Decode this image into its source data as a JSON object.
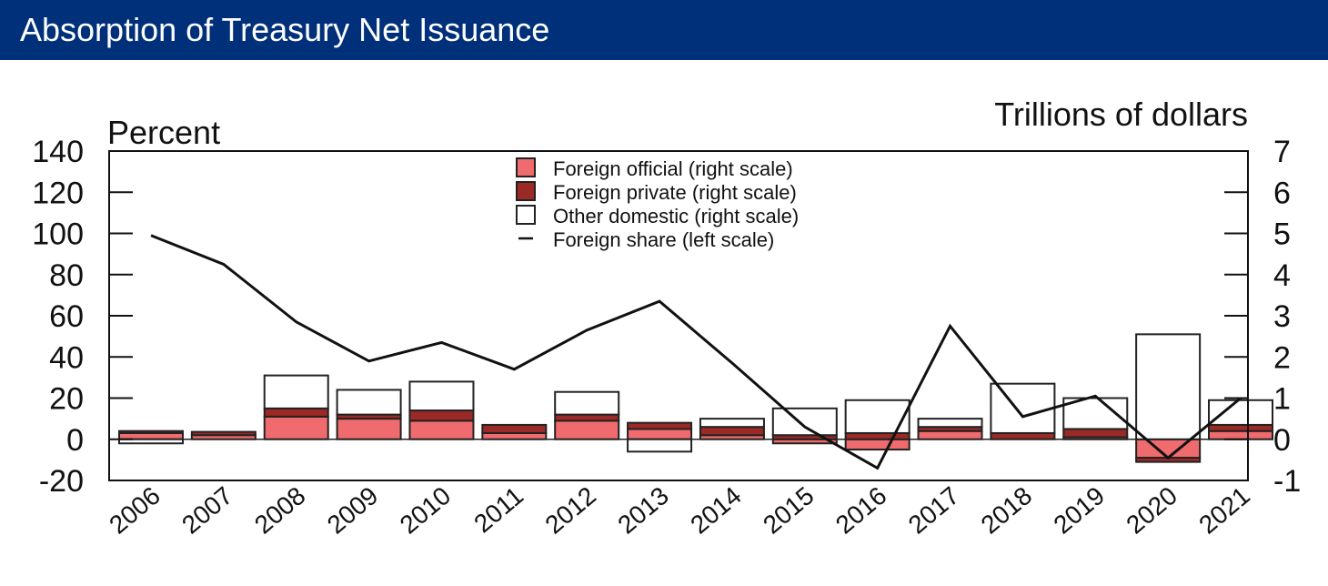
{
  "header": {
    "title": "Absorption of Treasury Net Issuance"
  },
  "colors": {
    "header_bg": "#00307a",
    "foreign_official": "#ef6b6d",
    "foreign_private": "#9b2a26",
    "other_domestic": "#ffffff",
    "line": "#111111"
  },
  "chart_data": {
    "type": "bar",
    "stacked": true,
    "left_axis": {
      "unit_label": "Percent",
      "range": [
        -20,
        140
      ],
      "ticks": [
        -20,
        0,
        20,
        40,
        60,
        80,
        100,
        120,
        140
      ]
    },
    "right_axis": {
      "unit_label": "Trillions of dollars",
      "range": [
        -1,
        7
      ],
      "ticks": [
        -1,
        0,
        1,
        2,
        3,
        4,
        5,
        6,
        7
      ]
    },
    "categories": [
      "2006",
      "2007",
      "2008",
      "2009",
      "2010",
      "2011",
      "2012",
      "2013",
      "2014",
      "2015",
      "2016",
      "2017",
      "2018",
      "2019",
      "2020",
      "2021"
    ],
    "series": [
      {
        "name": "Foreign official (right scale)",
        "axis": "right",
        "kind": "bar",
        "values": [
          0.15,
          0.1,
          0.55,
          0.5,
          0.45,
          0.15,
          0.45,
          0.25,
          0.1,
          -0.1,
          -0.25,
          0.2,
          0.0,
          0.05,
          -0.45,
          0.2
        ]
      },
      {
        "name": "Foreign private (right scale)",
        "axis": "right",
        "kind": "bar",
        "values": [
          0.05,
          0.08,
          0.2,
          0.1,
          0.25,
          0.2,
          0.15,
          0.15,
          0.2,
          0.1,
          0.15,
          0.1,
          0.15,
          0.2,
          -0.1,
          0.15
        ]
      },
      {
        "name": "Other domestic (right scale)",
        "axis": "right",
        "kind": "bar",
        "values": [
          -0.1,
          0.0,
          0.8,
          0.6,
          0.7,
          0.0,
          0.55,
          -0.3,
          0.2,
          0.65,
          0.8,
          0.2,
          1.2,
          0.75,
          2.55,
          0.6
        ]
      },
      {
        "name": "Foreign share (left scale)",
        "axis": "left",
        "kind": "line",
        "values": [
          99,
          85,
          57,
          38,
          47,
          34,
          53,
          67,
          37,
          6,
          -14,
          55,
          11,
          21,
          -9,
          20
        ]
      }
    ],
    "legend_position": "top-center",
    "grid": false
  }
}
